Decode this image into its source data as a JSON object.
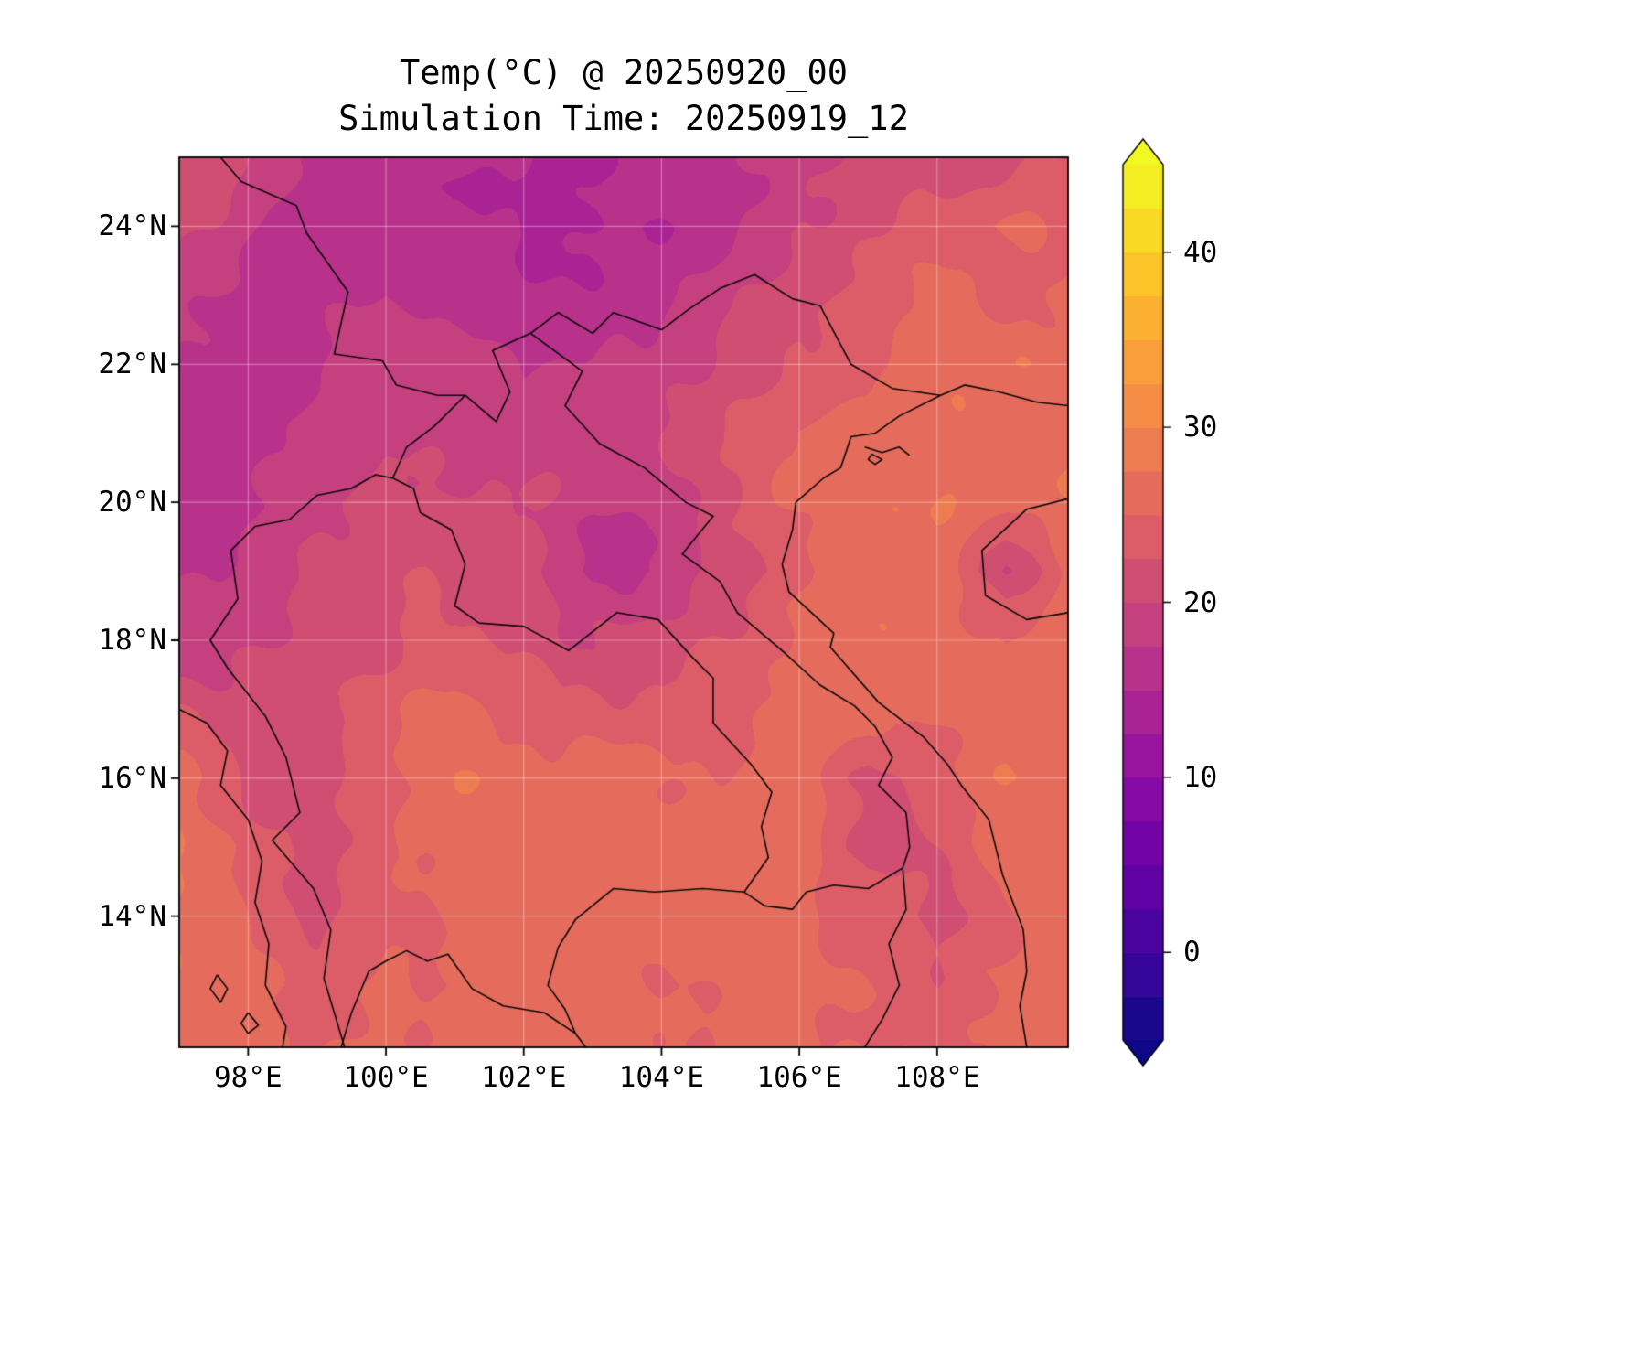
{
  "title": {
    "line1": "Temp(°C) @ 20250920_00",
    "line2": "Simulation Time: 20250919_12"
  },
  "axes": {
    "x_ticks": [
      {
        "lon": 98,
        "label": "98°E"
      },
      {
        "lon": 100,
        "label": "100°E"
      },
      {
        "lon": 102,
        "label": "102°E"
      },
      {
        "lon": 104,
        "label": "104°E"
      },
      {
        "lon": 106,
        "label": "106°E"
      },
      {
        "lon": 108,
        "label": "108°E"
      }
    ],
    "y_ticks": [
      {
        "lat": 24,
        "label": "24°N"
      },
      {
        "lat": 22,
        "label": "22°N"
      },
      {
        "lat": 20,
        "label": "20°N"
      },
      {
        "lat": 18,
        "label": "18°N"
      },
      {
        "lat": 16,
        "label": "16°N"
      },
      {
        "lat": 14,
        "label": "14°N"
      }
    ]
  },
  "colorbar": {
    "ticks": [
      {
        "value": 40,
        "label": "40"
      },
      {
        "value": 30,
        "label": "30"
      },
      {
        "value": 20,
        "label": "20"
      },
      {
        "value": 10,
        "label": "10"
      },
      {
        "value": 0,
        "label": "0"
      }
    ],
    "extend": "both"
  },
  "chart_data": {
    "type": "heatmap",
    "title": "Temp(°C) @ 20250920_00",
    "subtitle": "Simulation Time: 20250919_12",
    "variable": "Temperature",
    "units": "°C",
    "valid_time": "20250920_00",
    "simulation_time": "20250919_12",
    "lon_range": [
      97.0,
      109.9
    ],
    "lat_range": [
      12.1,
      25.0
    ],
    "levels": {
      "min": -5,
      "max": 45,
      "step": 2.5
    },
    "colormap": "plasma",
    "colormap_anchors": [
      "#0d0887",
      "#41049d",
      "#6a00a8",
      "#8f0da4",
      "#b12a90",
      "#cc4778",
      "#e16462",
      "#f2844b",
      "#fca636",
      "#fcce25",
      "#f0f921"
    ],
    "grid": {
      "lons": [
        97,
        98,
        99,
        100,
        101,
        102,
        103,
        104,
        105,
        106,
        107,
        108,
        109,
        110
      ],
      "lats": [
        25,
        24,
        23,
        22,
        21,
        20,
        19,
        18,
        17,
        16,
        15,
        14,
        13,
        12
      ],
      "values": [
        [
          21,
          20,
          17,
          16,
          15,
          15,
          15,
          16,
          17,
          19,
          21,
          22,
          22,
          23
        ],
        [
          21,
          18,
          16,
          17,
          15,
          14,
          15,
          15,
          17,
          20,
          22,
          23,
          25,
          24
        ],
        [
          19,
          17,
          16,
          18,
          16,
          15,
          16,
          17,
          19,
          22,
          23,
          26,
          24,
          26
        ],
        [
          17,
          16,
          17,
          19,
          18,
          17,
          18,
          19,
          21,
          23,
          24,
          26,
          27,
          27
        ],
        [
          16,
          16,
          18,
          19,
          19,
          19,
          20,
          20,
          22,
          25,
          27,
          27,
          27,
          27
        ],
        [
          16,
          17,
          19,
          21,
          21,
          20,
          18,
          18,
          22,
          26,
          27,
          27,
          26,
          27
        ],
        [
          17,
          18,
          20,
          22,
          22,
          21,
          17,
          17,
          21,
          24,
          27,
          27,
          20,
          26
        ],
        [
          18,
          19,
          21,
          22,
          23,
          22,
          20,
          21,
          23,
          26,
          27,
          27,
          25,
          27
        ],
        [
          22,
          21,
          22,
          24,
          26,
          24,
          23,
          23,
          24,
          26,
          27,
          26,
          27,
          27
        ],
        [
          26,
          22,
          21,
          24,
          27,
          26,
          26,
          26,
          25,
          27,
          21,
          24,
          27,
          27
        ],
        [
          27,
          24,
          21,
          24,
          26,
          27,
          26,
          26,
          26,
          26,
          21,
          23,
          26,
          27
        ],
        [
          27,
          25,
          22,
          24,
          26,
          26,
          25,
          26,
          27,
          26,
          24,
          21,
          24,
          27
        ],
        [
          27,
          26,
          24,
          25,
          25,
          26,
          26,
          25,
          26,
          26,
          25,
          23,
          25,
          27
        ],
        [
          27,
          26,
          25,
          26,
          26,
          26,
          26,
          25,
          26,
          26,
          25,
          24,
          26,
          27
        ]
      ]
    },
    "borders": {
      "myanmar_china": [
        [
          97.6,
          25.0
        ],
        [
          97.9,
          24.65
        ],
        [
          98.7,
          24.3
        ],
        [
          98.85,
          23.9
        ],
        [
          99.45,
          23.05
        ],
        [
          99.25,
          22.15
        ],
        [
          99.95,
          22.05
        ],
        [
          100.15,
          21.7
        ],
        [
          100.75,
          21.55
        ],
        [
          101.15,
          21.55
        ]
      ],
      "china_laos": [
        [
          101.15,
          21.55
        ],
        [
          101.6,
          21.17
        ],
        [
          101.8,
          21.6
        ],
        [
          101.55,
          22.2
        ],
        [
          102.1,
          22.45
        ]
      ],
      "myanmar_laos": [
        [
          101.15,
          21.55
        ],
        [
          100.7,
          21.1
        ],
        [
          100.3,
          20.8
        ],
        [
          100.1,
          20.35
        ]
      ],
      "china_vietnam": [
        [
          102.1,
          22.45
        ],
        [
          102.5,
          22.75
        ],
        [
          103.0,
          22.45
        ],
        [
          103.3,
          22.75
        ],
        [
          104.0,
          22.5
        ],
        [
          104.4,
          22.8
        ],
        [
          104.85,
          23.1
        ],
        [
          105.35,
          23.3
        ],
        [
          105.9,
          22.95
        ],
        [
          106.3,
          22.85
        ],
        [
          106.75,
          22.0
        ],
        [
          107.35,
          21.65
        ],
        [
          108.05,
          21.55
        ]
      ],
      "china_coast": [
        [
          108.05,
          21.55
        ],
        [
          108.4,
          21.7
        ],
        [
          108.9,
          21.6
        ],
        [
          109.45,
          21.45
        ],
        [
          109.9,
          21.4
        ]
      ],
      "vietnam_coast": [
        [
          108.05,
          21.55
        ],
        [
          107.45,
          21.25
        ],
        [
          107.1,
          21.0
        ],
        [
          106.75,
          20.95
        ],
        [
          106.6,
          20.5
        ],
        [
          106.35,
          20.35
        ],
        [
          105.95,
          20.0
        ],
        [
          105.9,
          19.6
        ],
        [
          105.75,
          19.1
        ],
        [
          105.85,
          18.7
        ],
        [
          106.5,
          18.1
        ],
        [
          106.45,
          17.9
        ],
        [
          107.15,
          17.1
        ],
        [
          107.8,
          16.6
        ],
        [
          108.15,
          16.2
        ],
        [
          108.35,
          15.9
        ],
        [
          108.75,
          15.4
        ],
        [
          108.95,
          14.6
        ],
        [
          109.25,
          13.8
        ],
        [
          109.3,
          13.2
        ],
        [
          109.2,
          12.7
        ],
        [
          109.3,
          12.1
        ]
      ],
      "hainan": [
        [
          109.9,
          20.05
        ],
        [
          109.3,
          19.9
        ],
        [
          108.65,
          19.3
        ],
        [
          108.7,
          18.65
        ],
        [
          109.3,
          18.3
        ],
        [
          109.9,
          18.4
        ]
      ],
      "laos_vietnam": [
        [
          102.1,
          22.45
        ],
        [
          102.85,
          21.9
        ],
        [
          102.6,
          21.4
        ],
        [
          103.1,
          20.85
        ],
        [
          103.75,
          20.5
        ],
        [
          104.35,
          20.0
        ],
        [
          104.75,
          19.8
        ],
        [
          104.3,
          19.25
        ],
        [
          104.85,
          18.85
        ],
        [
          105.1,
          18.4
        ],
        [
          105.75,
          17.85
        ],
        [
          106.3,
          17.35
        ],
        [
          106.8,
          17.05
        ],
        [
          107.1,
          16.75
        ],
        [
          107.35,
          16.3
        ],
        [
          107.15,
          15.9
        ],
        [
          107.55,
          15.5
        ],
        [
          107.6,
          15.0
        ],
        [
          107.5,
          14.7
        ]
      ],
      "laos_cambodia": [
        [
          107.5,
          14.7
        ],
        [
          107.0,
          14.4
        ],
        [
          106.5,
          14.45
        ],
        [
          106.1,
          14.35
        ],
        [
          105.9,
          14.1
        ],
        [
          105.5,
          14.15
        ],
        [
          105.2,
          14.35
        ]
      ],
      "thailand_laos": [
        [
          100.1,
          20.35
        ],
        [
          100.4,
          20.2
        ],
        [
          100.5,
          19.85
        ],
        [
          100.95,
          19.6
        ],
        [
          101.15,
          19.1
        ],
        [
          101.0,
          18.5
        ],
        [
          101.35,
          18.25
        ],
        [
          102.0,
          18.2
        ],
        [
          102.65,
          17.85
        ],
        [
          103.35,
          18.4
        ],
        [
          103.95,
          18.3
        ],
        [
          104.45,
          17.75
        ],
        [
          104.75,
          17.45
        ],
        [
          104.75,
          16.8
        ],
        [
          105.3,
          16.2
        ],
        [
          105.6,
          15.8
        ],
        [
          105.45,
          15.3
        ],
        [
          105.55,
          14.85
        ],
        [
          105.2,
          14.35
        ]
      ],
      "thailand_cambodia": [
        [
          105.2,
          14.35
        ],
        [
          104.6,
          14.4
        ],
        [
          103.9,
          14.35
        ],
        [
          103.3,
          14.4
        ],
        [
          102.75,
          13.95
        ],
        [
          102.5,
          13.55
        ],
        [
          102.35,
          13.0
        ],
        [
          102.6,
          12.65
        ],
        [
          102.75,
          12.3
        ]
      ],
      "cambodia_vietnam": [
        [
          107.5,
          14.7
        ],
        [
          107.55,
          14.1
        ],
        [
          107.3,
          13.6
        ],
        [
          107.45,
          13.0
        ],
        [
          107.2,
          12.5
        ],
        [
          106.95,
          12.1
        ]
      ],
      "thailand_myanmar": [
        [
          100.1,
          20.35
        ],
        [
          99.85,
          20.4
        ],
        [
          99.5,
          20.2
        ],
        [
          99.0,
          20.1
        ],
        [
          98.6,
          19.75
        ],
        [
          98.1,
          19.65
        ],
        [
          97.75,
          19.3
        ],
        [
          97.85,
          18.6
        ],
        [
          97.45,
          18.0
        ],
        [
          97.7,
          17.6
        ],
        [
          98.25,
          16.9
        ],
        [
          98.55,
          16.3
        ],
        [
          98.75,
          15.5
        ],
        [
          98.35,
          15.1
        ],
        [
          98.95,
          14.4
        ],
        [
          99.2,
          13.8
        ],
        [
          99.1,
          13.1
        ],
        [
          99.25,
          12.6
        ],
        [
          99.4,
          12.1
        ]
      ],
      "myanmar_coast": [
        [
          97.0,
          17.0
        ],
        [
          97.4,
          16.8
        ],
        [
          97.7,
          16.4
        ],
        [
          97.6,
          15.9
        ],
        [
          98.0,
          15.4
        ],
        [
          98.2,
          14.8
        ],
        [
          98.1,
          14.2
        ],
        [
          98.3,
          13.6
        ],
        [
          98.25,
          13.0
        ],
        [
          98.55,
          12.4
        ],
        [
          98.5,
          12.1
        ]
      ],
      "gulf_coast": [
        [
          99.35,
          12.1
        ],
        [
          99.5,
          12.6
        ],
        [
          99.75,
          13.2
        ],
        [
          100.0,
          13.35
        ],
        [
          100.3,
          13.5
        ],
        [
          100.6,
          13.35
        ],
        [
          100.9,
          13.45
        ],
        [
          101.25,
          12.95
        ],
        [
          101.7,
          12.7
        ],
        [
          102.3,
          12.6
        ],
        [
          102.75,
          12.3
        ],
        [
          102.9,
          12.1
        ]
      ],
      "halong_islands": [
        [
          106.95,
          20.8
        ],
        [
          107.2,
          20.72
        ],
        [
          107.45,
          20.8
        ],
        [
          107.6,
          20.68
        ]
      ],
      "island_1": [
        [
          97.55,
          13.15
        ],
        [
          97.7,
          12.95
        ],
        [
          97.6,
          12.75
        ],
        [
          97.45,
          12.95
        ],
        [
          97.55,
          13.15
        ]
      ],
      "island_2": [
        [
          98.0,
          12.6
        ],
        [
          98.15,
          12.42
        ],
        [
          98.0,
          12.3
        ],
        [
          97.9,
          12.45
        ],
        [
          98.0,
          12.6
        ]
      ],
      "island_3": [
        [
          107.05,
          20.7
        ],
        [
          107.2,
          20.62
        ],
        [
          107.1,
          20.55
        ],
        [
          107.0,
          20.62
        ],
        [
          107.05,
          20.7
        ]
      ]
    }
  }
}
